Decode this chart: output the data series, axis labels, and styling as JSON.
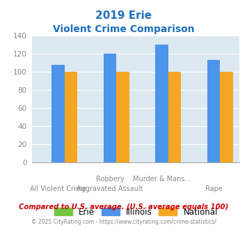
{
  "title_line1": "2019 Erie",
  "title_line2": "Violent Crime Comparison",
  "title_color": "#1e6fbe",
  "cat_top": [
    "",
    "Robbery",
    "Murder & Mans...",
    ""
  ],
  "cat_bottom": [
    "All Violent Crime",
    "Aggravated Assault",
    "",
    "Rape"
  ],
  "erie_values": [
    0,
    0,
    0,
    0
  ],
  "illinois_values": [
    108,
    120,
    130,
    113
  ],
  "national_values": [
    100,
    100,
    100,
    100
  ],
  "erie_color": "#76c442",
  "illinois_color": "#4d94eb",
  "national_color": "#f5a623",
  "ylim": [
    0,
    140
  ],
  "yticks": [
    0,
    20,
    40,
    60,
    80,
    100,
    120,
    140
  ],
  "bar_width": 0.25,
  "plot_bg": "#dce9f0",
  "legend_labels": [
    "Erie",
    "Illinois",
    "National"
  ],
  "footnote1": "Compared to U.S. average. (U.S. average equals 100)",
  "footnote2": "© 2025 CityRating.com - https://www.cityrating.com/crime-statistics/",
  "footnote1_color": "#cc0000",
  "footnote2_color": "#888888",
  "grid_color": "#ffffff",
  "tick_label_color": "#888888"
}
